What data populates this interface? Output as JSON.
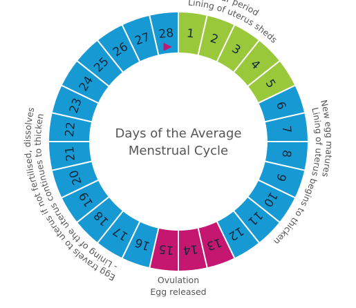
{
  "title": [
    "Days of the Average",
    "Menstrual Cycle"
  ],
  "segments": [
    {
      "day": "1",
      "color": "#99c93a"
    },
    {
      "day": "2",
      "color": "#99c93a"
    },
    {
      "day": "3",
      "color": "#99c93a"
    },
    {
      "day": "4",
      "color": "#99c93a"
    },
    {
      "day": "5",
      "color": "#99c93a"
    },
    {
      "day": "6",
      "color": "#1799d3"
    },
    {
      "day": "7",
      "color": "#1799d3"
    },
    {
      "day": "8",
      "color": "#1799d3"
    },
    {
      "day": "9",
      "color": "#1799d3"
    },
    {
      "day": "10",
      "color": "#1799d3"
    },
    {
      "day": "11",
      "color": "#1799d3"
    },
    {
      "day": "12",
      "color": "#1799d3"
    },
    {
      "day": "13",
      "color": "#c5176f"
    },
    {
      "day": "14",
      "color": "#c5176f"
    },
    {
      "day": "15",
      "color": "#c5176f"
    },
    {
      "day": "16",
      "color": "#1799d3"
    },
    {
      "day": "17",
      "color": "#1799d3"
    },
    {
      "day": "18",
      "color": "#1799d3"
    },
    {
      "day": "19",
      "color": "#1799d3"
    },
    {
      "day": "20",
      "color": "#1799d3"
    },
    {
      "day": "21",
      "color": "#1799d3"
    },
    {
      "day": "22",
      "color": "#1799d3"
    },
    {
      "day": "23",
      "color": "#1799d3"
    },
    {
      "day": "24",
      "color": "#1799d3"
    },
    {
      "day": "25",
      "color": "#1799d3"
    },
    {
      "day": "26",
      "color": "#1799d3"
    },
    {
      "day": "27",
      "color": "#1799d3"
    },
    {
      "day": "28",
      "color": "#1799d3"
    }
  ],
  "arc_labels": {
    "period": [
      "Your period",
      "Lining of uterus sheds"
    ],
    "egg": [
      "New egg matures",
      "Lining of uterus begins to thicken"
    ],
    "travel": [
      "Egg travels to uterus if not fertilised, dissolves",
      "- Lining of the uterus continues to thicken"
    ]
  },
  "ovulation": [
    "Ovulation",
    "Egg released"
  ]
}
